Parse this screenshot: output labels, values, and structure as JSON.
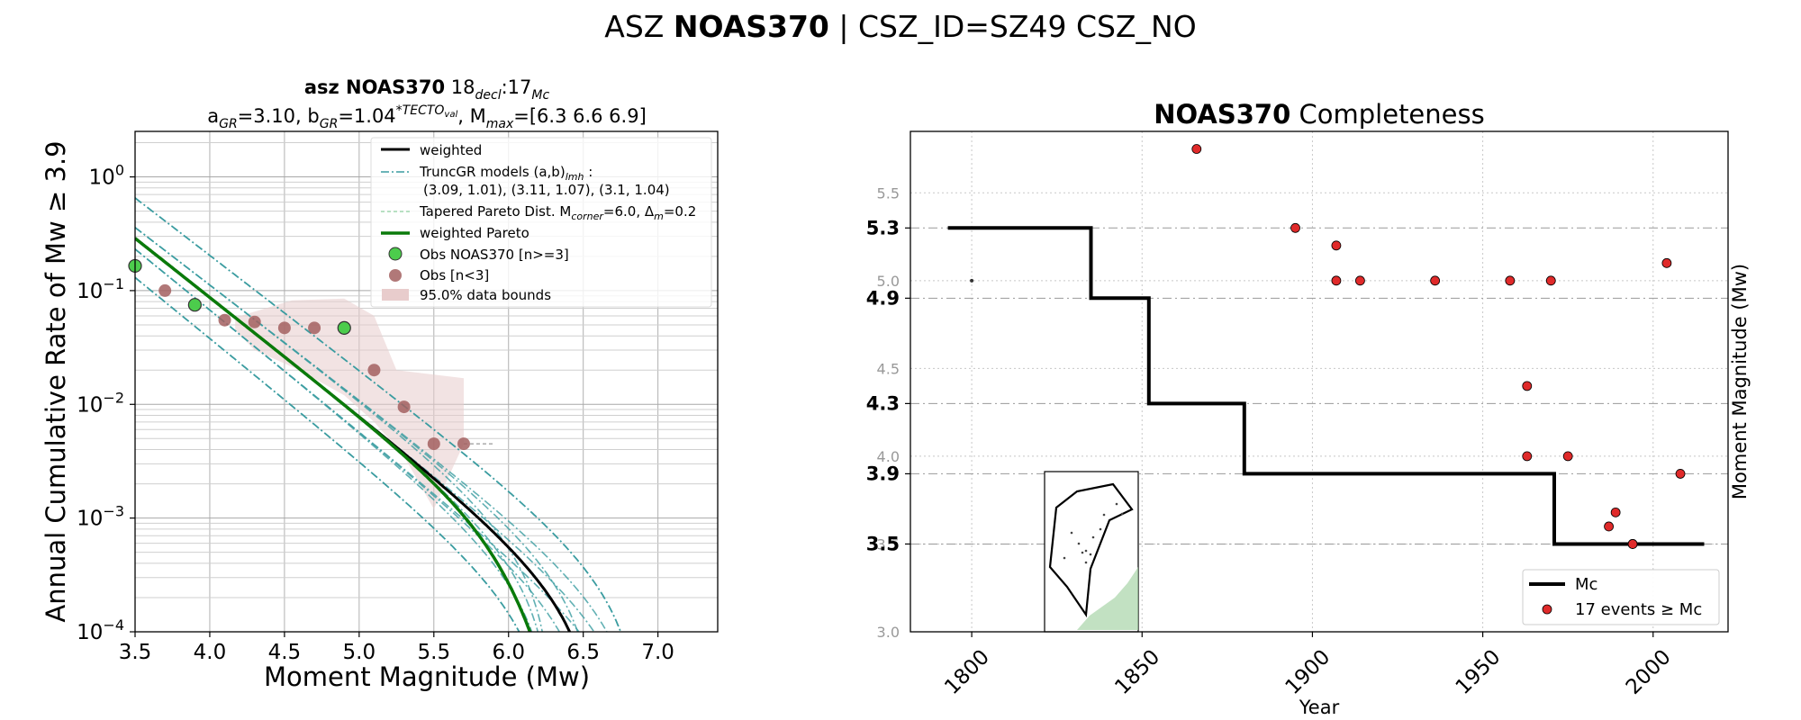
{
  "figure": {
    "suptitle_prefix": "ASZ",
    "suptitle_bold": "NOAS370",
    "suptitle_suffix": "| CSZ_ID=SZ49 CSZ_NO"
  },
  "chart_data": [
    {
      "type": "line",
      "panel": "left",
      "title_line1_bold": "asz NOAS370",
      "title_line1_rest": "18",
      "title_line1_sub1": "decl",
      "title_line1_mid": ":17",
      "title_line1_sub2": "Mc",
      "title_line2": {
        "a_label": "a",
        "a_sub": "GR",
        "a_value": "=3.10,",
        "b_label": "b",
        "b_sub": "GR",
        "b_value": "=1.04",
        "b_sup": "*TECTO",
        "b_sup_sub": "val",
        "mmax_label": ", M",
        "mmax_sub": "max",
        "mmax_value": "=[6.3 6.6 6.9]"
      },
      "xlabel": "Moment Magnitude (Mw)",
      "ylabel": "Annual Cumulative Rate of Mw ≥ 3.9",
      "xlim": [
        3.5,
        7.4
      ],
      "ylim_log10": [
        -4,
        0.4
      ],
      "yscale": "log",
      "xticks": [
        "3.5",
        "4.0",
        "4.5",
        "5.0",
        "5.5",
        "6.0",
        "6.5",
        "7.0"
      ],
      "xtick_values": [
        3.5,
        4.0,
        4.5,
        5.0,
        5.5,
        6.0,
        6.5,
        7.0
      ],
      "yticks": [
        {
          "base": "10",
          "exp": "0",
          "value": 0
        },
        {
          "base": "10",
          "exp": "−1",
          "value": -1
        },
        {
          "base": "10",
          "exp": "−2",
          "value": -2
        },
        {
          "base": "10",
          "exp": "−3",
          "value": -3
        },
        {
          "base": "10",
          "exp": "−4",
          "value": -4
        }
      ],
      "grid": true,
      "legend_position": "upper right",
      "legend": {
        "weighted": "weighted",
        "truncgr_line1": "TruncGR models (a,b)",
        "truncgr_sub": "lmh",
        "truncgr_colon": " :",
        "truncgr_line2": "(3.09, 1.01), (3.11, 1.07), (3.1, 1.04)",
        "pareto_a": "Tapered Pareto Dist. M",
        "pareto_sub1": "corner",
        "pareto_b": "=6.0, Δ",
        "pareto_sub2": "m",
        "pareto_c": "=0.2",
        "weighted_pareto": "weighted Pareto",
        "obs_main": "Obs NOAS370 [n>=3]",
        "obs_small": "Obs [n<3]",
        "bounds": "95.0% data bounds"
      },
      "colors": {
        "weighted": "#000000",
        "truncgr": "#3a9ca0",
        "pareto": "#8fd0a0",
        "weighted_pareto": "#0a7a0a",
        "obs_main": "#4ccc4c",
        "obs_small": "#a36060",
        "bounds": "#e8cccc"
      },
      "series": [
        {
          "name": "Obs NOAS370 [n>=3]",
          "x": [
            3.5,
            3.9,
            4.9
          ],
          "y": [
            0.165,
            0.075,
            0.047
          ]
        },
        {
          "name": "Obs [n<3]",
          "x": [
            3.7,
            4.1,
            4.3,
            4.5,
            4.7,
            5.1,
            5.3,
            5.5,
            5.7
          ],
          "y": [
            0.1,
            0.055,
            0.053,
            0.047,
            0.047,
            0.02,
            0.0095,
            0.0045,
            0.0045
          ]
        },
        {
          "name": "weighted",
          "a": 3.1,
          "b": 1.04,
          "mmax": 6.3
        },
        {
          "name": "weighted Pareto",
          "a": 3.1,
          "b": 1.04,
          "mcorner": 6.0
        }
      ]
    },
    {
      "type": "scatter",
      "panel": "right",
      "title_bold": "NOAS370",
      "title_rest": " Completeness",
      "xlabel": "Year",
      "ylabel": "Moment Magnitude (Mw)",
      "xlim": [
        1782,
        2022
      ],
      "ylim": [
        3.0,
        5.85
      ],
      "xticks": [
        "1800",
        "1850",
        "1900",
        "1950",
        "2000"
      ],
      "xtick_values": [
        1800,
        1850,
        1900,
        1950,
        2000
      ],
      "yticks_minor": [
        "3.0",
        "3.5",
        "4.0",
        "4.5",
        "5.0",
        "5.5"
      ],
      "yticks_minor_values": [
        3.0,
        3.5,
        4.0,
        4.5,
        5.0,
        5.5
      ],
      "yticks_major": [
        "3.5",
        "3.9",
        "4.3",
        "4.9",
        "5.3"
      ],
      "yticks_major_values": [
        3.5,
        3.9,
        4.3,
        4.9,
        5.3
      ],
      "grid": true,
      "legend_position": "lower right",
      "legend": {
        "mc": "Mc",
        "events": "17 events ≥ Mc"
      },
      "colors": {
        "mc": "#000000",
        "events": "#e02a2a"
      },
      "mc_step": [
        {
          "year": 1793,
          "mc": 5.3
        },
        {
          "year": 1835,
          "mc": 5.3
        },
        {
          "year": 1835,
          "mc": 4.9
        },
        {
          "year": 1852,
          "mc": 4.9
        },
        {
          "year": 1852,
          "mc": 4.3
        },
        {
          "year": 1880,
          "mc": 4.3
        },
        {
          "year": 1880,
          "mc": 3.9
        },
        {
          "year": 1971,
          "mc": 3.9
        },
        {
          "year": 1971,
          "mc": 3.5
        },
        {
          "year": 2015,
          "mc": 3.5
        }
      ],
      "events": [
        {
          "year": 1866,
          "mw": 5.75
        },
        {
          "year": 1895,
          "mw": 5.3
        },
        {
          "year": 1907,
          "mw": 5.2
        },
        {
          "year": 1907,
          "mw": 5.0
        },
        {
          "year": 1914,
          "mw": 5.0
        },
        {
          "year": 1936,
          "mw": 5.0
        },
        {
          "year": 1958,
          "mw": 5.0
        },
        {
          "year": 1970,
          "mw": 5.0
        },
        {
          "year": 1963,
          "mw": 4.4
        },
        {
          "year": 1963,
          "mw": 4.0
        },
        {
          "year": 1975,
          "mw": 4.0
        },
        {
          "year": 2004,
          "mw": 5.1
        },
        {
          "year": 2008,
          "mw": 3.9
        },
        {
          "year": 1989,
          "mw": 3.68
        },
        {
          "year": 1987,
          "mw": 3.6
        },
        {
          "year": 1994,
          "mw": 3.5
        },
        {
          "year": 1994,
          "mw": 3.5
        }
      ],
      "small_events": [
        {
          "year": 1800,
          "mw": 5.0
        }
      ]
    }
  ]
}
